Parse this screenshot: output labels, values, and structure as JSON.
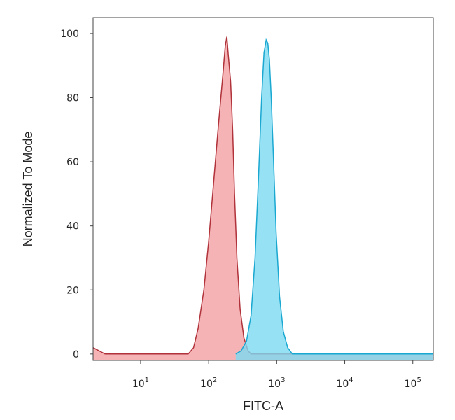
{
  "chart_data": {
    "type": "area",
    "title": "",
    "xlabel": "FITC-A",
    "ylabel": "Normalized To Mode",
    "x_scale": "log",
    "xlim": [
      2,
      200000
    ],
    "ylim": [
      -2,
      105
    ],
    "grid": false,
    "legend": "none",
    "x_ticks": [
      {
        "value": 10,
        "base": "10",
        "exp": "1"
      },
      {
        "value": 100,
        "base": "10",
        "exp": "2"
      },
      {
        "value": 1000,
        "base": "10",
        "exp": "3"
      },
      {
        "value": 10000,
        "base": "10",
        "exp": "4"
      },
      {
        "value": 100000,
        "base": "10",
        "exp": "5"
      }
    ],
    "y_ticks": [
      {
        "value": 0,
        "label": "0"
      },
      {
        "value": 20,
        "label": "20"
      },
      {
        "value": 40,
        "label": "40"
      },
      {
        "value": 60,
        "label": "60"
      },
      {
        "value": 80,
        "label": "80"
      },
      {
        "value": 100,
        "label": "100"
      }
    ],
    "series": [
      {
        "fill": "#f4a0a3",
        "stroke": "#b0323a",
        "x": [
          2,
          3,
          50,
          60,
          70,
          85,
          100,
          120,
          140,
          160,
          175,
          185,
          195,
          210,
          225,
          240,
          260,
          290,
          330,
          380,
          420,
          200000
        ],
        "y": [
          2,
          0,
          0,
          2,
          8,
          20,
          35,
          55,
          72,
          86,
          96,
          99,
          93,
          85,
          70,
          50,
          30,
          14,
          5,
          1,
          0,
          0
        ]
      },
      {
        "fill": "#7dd9f2",
        "stroke": "#1aa8d1",
        "x": [
          250,
          300,
          360,
          420,
          480,
          540,
          600,
          650,
          700,
          740,
          780,
          830,
          900,
          980,
          1100,
          1250,
          1450,
          1700,
          200000
        ],
        "y": [
          0,
          1,
          4,
          12,
          30,
          55,
          80,
          94,
          98,
          97,
          92,
          80,
          60,
          38,
          18,
          7,
          2,
          0,
          0
        ]
      }
    ]
  }
}
